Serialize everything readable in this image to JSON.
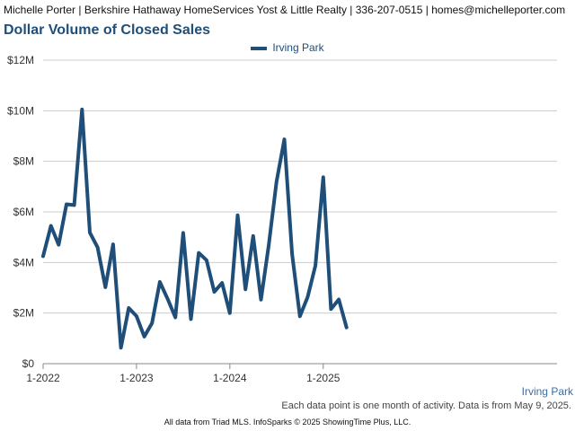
{
  "header": {
    "agent_line": "Michelle Porter | Berkshire Hathaway HomeServices Yost & Little Realty | 336-207-0515 | homes@michelleporter.com"
  },
  "colors": {
    "series": "#1f4e79",
    "grid": "#cccccc",
    "axis": "#888888"
  },
  "chart_data": {
    "type": "line",
    "title": "Dollar Volume of Closed Sales",
    "legend_position": "top-center",
    "grid": true,
    "ylim": [
      0,
      12000000
    ],
    "y_ticks": [
      0,
      2000000,
      4000000,
      6000000,
      8000000,
      10000000,
      12000000
    ],
    "y_tick_labels": [
      "$0",
      "$2M",
      "$4M",
      "$6M",
      "$8M",
      "$10M",
      "$12M"
    ],
    "x_tick_labels": [
      {
        "label": "1-2022",
        "index": 0
      },
      {
        "label": "1-2023",
        "index": 12
      },
      {
        "label": "1-2024",
        "index": 24
      },
      {
        "label": "1-2025",
        "index": 36
      }
    ],
    "series": [
      {
        "name": "Irving Park",
        "x": [
          "2022-01",
          "2022-02",
          "2022-03",
          "2022-04",
          "2022-05",
          "2022-06",
          "2022-07",
          "2022-08",
          "2022-09",
          "2022-10",
          "2022-11",
          "2022-12",
          "2023-01",
          "2023-02",
          "2023-03",
          "2023-04",
          "2023-05",
          "2023-06",
          "2023-07",
          "2023-08",
          "2023-09",
          "2023-10",
          "2023-11",
          "2023-12",
          "2024-01",
          "2024-02",
          "2024-03",
          "2024-04",
          "2024-05",
          "2024-06",
          "2024-07",
          "2024-08",
          "2024-09",
          "2024-10",
          "2024-11",
          "2024-12",
          "2025-01",
          "2025-02",
          "2025-03",
          "2025-04"
        ],
        "values": [
          4250000,
          5450000,
          4700000,
          6300000,
          6270000,
          10050000,
          5180000,
          4600000,
          3020000,
          4720000,
          630000,
          2200000,
          1880000,
          1070000,
          1600000,
          3230000,
          2560000,
          1830000,
          5170000,
          1760000,
          4380000,
          4090000,
          2840000,
          3190000,
          2000000,
          5870000,
          2940000,
          5050000,
          2530000,
          4680000,
          7200000,
          8870000,
          4340000,
          1870000,
          2630000,
          3880000,
          7370000,
          2160000,
          2540000,
          1430000
        ]
      }
    ]
  },
  "x_axis_series_label": "Irving Park",
  "footnote": "Each data point is one month of activity. Data is from May 9, 2025.",
  "credit": "All data from Triad MLS. InfoSparks © 2025 ShowingTime Plus, LLC."
}
